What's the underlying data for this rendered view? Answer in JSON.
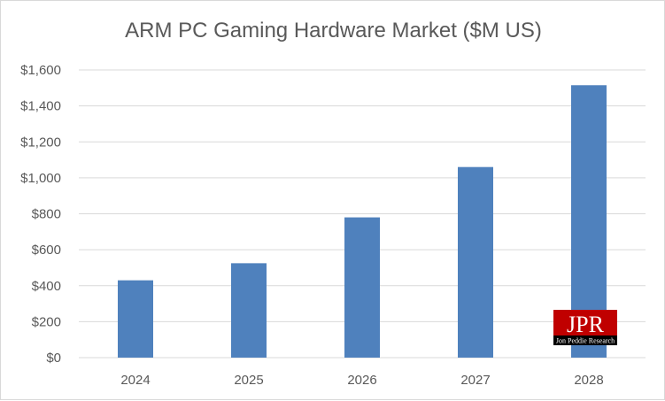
{
  "chart_data": {
    "type": "bar",
    "title": "ARM PC Gaming Hardware Market ($M US)",
    "categories": [
      "2024",
      "2025",
      "2026",
      "2027",
      "2028"
    ],
    "values": [
      430,
      525,
      780,
      1060,
      1515
    ],
    "ylim": [
      0,
      1600
    ],
    "yticks": [
      "$0",
      "$200",
      "$400",
      "$600",
      "$800",
      "$1,000",
      "$1,200",
      "$1,400",
      "$1,600"
    ],
    "grid": true,
    "bar_color": "#4f81bd",
    "grid_color": "#d9d9d9"
  },
  "logo": {
    "text": "JPR",
    "subtext": "Jon Peddie Research",
    "color": "#c00000"
  }
}
